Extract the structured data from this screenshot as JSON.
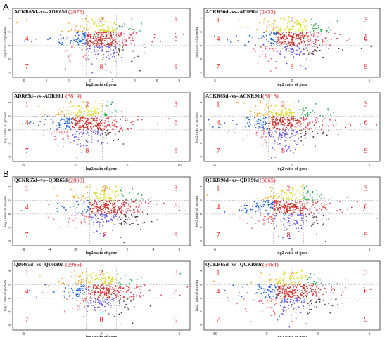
{
  "sections": [
    "A",
    "B"
  ],
  "colors": {
    "q1": "#f5a623",
    "q2": "#d8d820",
    "q3": "#2aa84a",
    "q4": "#1f5fd1",
    "q5": "#c8312c",
    "q6": "#d8474f",
    "q7": "#e8707a",
    "q8": "#6a5ae0",
    "q9": "#5a3a3a",
    "quadrant_number": "#e02020",
    "title_count": "#d02020"
  },
  "chart_data": [
    {
      "type": "scatter",
      "title": "ACKR65d--vs--ADR65d",
      "count": "(2676)",
      "xlabel": "log2 ratio of gene",
      "ylabel": "log2 ratio of protein",
      "xticks": [
        "-6",
        "-4",
        "-2",
        "0",
        "2",
        "4",
        "6",
        "8"
      ],
      "yticks": [
        "4",
        "2",
        "0",
        "-2",
        "-4"
      ],
      "quadrants": [
        "1",
        "2",
        "3",
        "4",
        "5",
        "6",
        "7",
        "8",
        "9"
      ]
    },
    {
      "type": "scatter",
      "title": "ACKR90d--vs--ADR90d",
      "count": "(2433)",
      "xlabel": "log2 ratio of gene",
      "ylabel": "log2 ratio of protein",
      "xticks": [
        "-5",
        "0",
        "5"
      ],
      "yticks": [
        "4",
        "2",
        "0",
        "-2",
        "-4"
      ],
      "quadrants": [
        "1",
        "2",
        "3",
        "4",
        "5",
        "6",
        "7",
        "8",
        "9"
      ]
    },
    {
      "type": "scatter",
      "title": "ADR65d--vs--ADR90d",
      "count": "(3819)",
      "xlabel": "log2 ratio of gene",
      "ylabel": "log2 ratio of protein",
      "xticks": [
        "-5",
        "0",
        "5",
        "10"
      ],
      "yticks": [
        "4",
        "2",
        "0",
        "-2",
        "-4"
      ],
      "quadrants": [
        "1",
        "2",
        "3",
        "4",
        "5",
        "6",
        "7",
        "8",
        "9"
      ]
    },
    {
      "type": "scatter",
      "title": "ACKR65d--vs--ACKR90d",
      "count": "(3818)",
      "xlabel": "log2 ratio of gene",
      "ylabel": "log2 ratio of protein",
      "xticks": [
        "-5",
        "0",
        "5"
      ],
      "yticks": [
        "4",
        "2",
        "0",
        "-2",
        "-4"
      ],
      "quadrants": [
        "1",
        "2",
        "3",
        "4",
        "5",
        "6",
        "7",
        "8",
        "9"
      ]
    },
    {
      "type": "scatter",
      "title": "QCKR65d--vs--QDR65d",
      "count": "(2800)",
      "xlabel": "log2 ratio of gene",
      "ylabel": "log2 ratio of protein",
      "xticks": [
        "-6",
        "-4",
        "-2",
        "0",
        "2",
        "4",
        "6"
      ],
      "yticks": [
        "4",
        "2",
        "0",
        "-2",
        "-4"
      ],
      "quadrants": [
        "1",
        "2",
        "3",
        "4",
        "5",
        "6",
        "7",
        "8",
        "9"
      ]
    },
    {
      "type": "scatter",
      "title": "QCKR90d--vs--QDR90d",
      "count": "(3065)",
      "xlabel": "log2 ratio of gene",
      "ylabel": "log2 ratio of protein",
      "xticks": [
        "-5",
        "0",
        "5"
      ],
      "yticks": [
        "4",
        "2",
        "0",
        "-2",
        "-4"
      ],
      "quadrants": [
        "1",
        "2",
        "3",
        "4",
        "5",
        "6",
        "7",
        "8",
        "9"
      ]
    },
    {
      "type": "scatter",
      "title": "QDR65d--vs--QDR90d",
      "count": "(2966)",
      "xlabel": "log2 ratio of gene",
      "ylabel": "log2 ratio of protein",
      "xticks": [
        "-5",
        "0",
        "5"
      ],
      "yticks": [
        "4",
        "2",
        "0",
        "-2",
        "-4"
      ],
      "quadrants": [
        "1",
        "2",
        "3",
        "4",
        "5",
        "6",
        "7",
        "8",
        "9"
      ]
    },
    {
      "type": "scatter",
      "title": "QCKR65d--vs--QCKR90d",
      "count": "(3464)",
      "xlabel": "log2 ratio of gene",
      "ylabel": "log2 ratio of protein",
      "xticks": [
        "-10",
        "-5",
        "0",
        "5"
      ],
      "yticks": [
        "4",
        "2",
        "0",
        "-2",
        "-4"
      ],
      "quadrants": [
        "1",
        "2",
        "3",
        "4",
        "5",
        "6",
        "7",
        "8",
        "9"
      ]
    }
  ]
}
